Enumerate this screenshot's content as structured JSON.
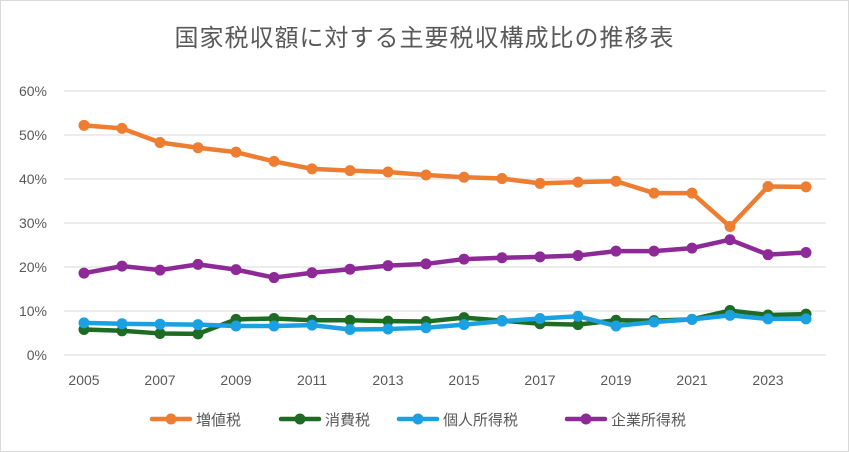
{
  "chart_data": {
    "type": "line",
    "title": "国家税収額に対する主要税収構成比の推移表",
    "xlabel": "",
    "ylabel": "",
    "x": [
      2005,
      2006,
      2007,
      2008,
      2009,
      2010,
      2011,
      2012,
      2013,
      2014,
      2015,
      2016,
      2017,
      2018,
      2019,
      2020,
      2021,
      2022,
      2023,
      2024
    ],
    "x_ticks": [
      "2005",
      "2007",
      "2009",
      "2011",
      "2013",
      "2015",
      "2017",
      "2019",
      "2021",
      "2023"
    ],
    "y_ticks": [
      "0%",
      "10%",
      "20%",
      "30%",
      "40%",
      "50%",
      "60%"
    ],
    "ylim": [
      0,
      60
    ],
    "grid": "horizontal",
    "legend_position": "bottom",
    "series": [
      {
        "name": "増値税",
        "color": "#ed7d31",
        "values": [
          52.2,
          51.5,
          48.3,
          47.1,
          46.1,
          44.0,
          42.3,
          41.9,
          41.6,
          40.9,
          40.4,
          40.1,
          39.0,
          39.3,
          39.5,
          36.8,
          36.8,
          29.2,
          38.3,
          38.2
        ]
      },
      {
        "name": "消費税",
        "color": "#1e6b24",
        "values": [
          5.8,
          5.5,
          4.9,
          4.8,
          8.1,
          8.3,
          7.9,
          7.9,
          7.7,
          7.6,
          8.5,
          7.8,
          7.1,
          6.9,
          7.9,
          7.8,
          8.1,
          10.1,
          9.1,
          9.3
        ]
      },
      {
        "name": "個人所得税",
        "color": "#1ba1e2",
        "values": [
          7.3,
          7.1,
          7.0,
          6.9,
          6.6,
          6.6,
          6.8,
          5.8,
          5.9,
          6.2,
          6.9,
          7.7,
          8.3,
          8.8,
          6.6,
          7.5,
          8.1,
          9.0,
          8.2,
          8.2
        ]
      },
      {
        "name": "企業所得税",
        "color": "#8e2a97",
        "values": [
          18.6,
          20.2,
          19.3,
          20.6,
          19.4,
          17.6,
          18.7,
          19.5,
          20.3,
          20.7,
          21.8,
          22.1,
          22.3,
          22.6,
          23.6,
          23.6,
          24.3,
          26.2,
          22.8,
          23.3
        ]
      }
    ]
  }
}
